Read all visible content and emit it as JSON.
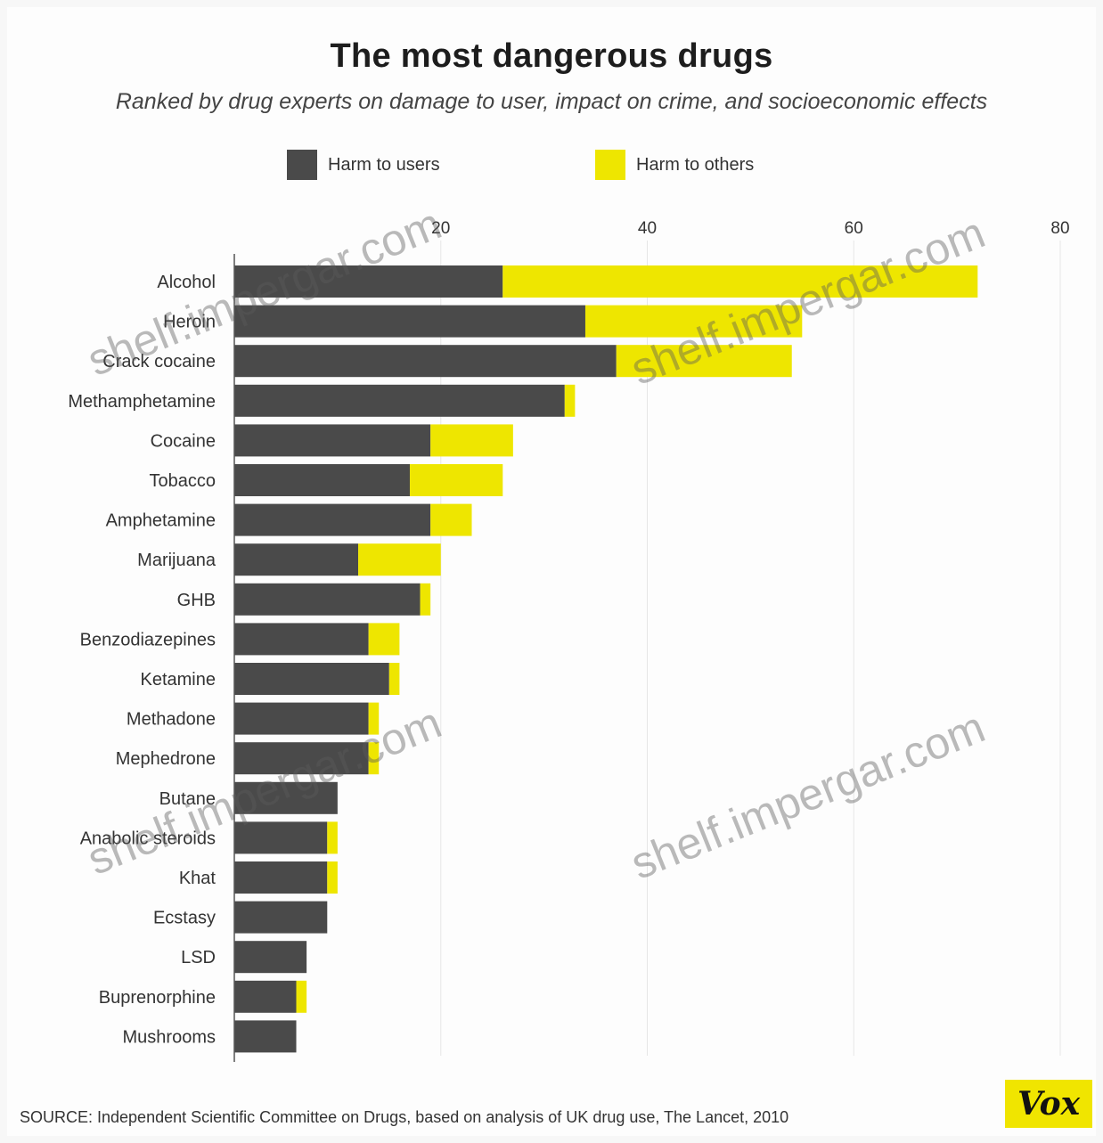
{
  "chart_data": {
    "type": "bar",
    "orientation": "horizontal",
    "stacked": true,
    "title": "The most dangerous drugs",
    "subtitle": "Ranked by drug experts on damage to user, impact on crime, and socioeconomic effects",
    "categories": [
      "Alcohol",
      "Heroin",
      "Crack cocaine",
      "Methamphetamine",
      "Cocaine",
      "Tobacco",
      "Amphetamine",
      "Marijuana",
      "GHB",
      "Benzodiazepines",
      "Ketamine",
      "Methadone",
      "Mephedrone",
      "Butane",
      "Anabolic steroids",
      "Khat",
      "Ecstasy",
      "LSD",
      "Buprenorphine",
      "Mushrooms"
    ],
    "series": [
      {
        "name": "Harm to users",
        "color": "#4a4a4a",
        "values": [
          26,
          34,
          37,
          32,
          19,
          17,
          19,
          12,
          18,
          13,
          15,
          13,
          13,
          10,
          9,
          9,
          9,
          7,
          6,
          6
        ]
      },
      {
        "name": "Harm to others",
        "color": "#eee600",
        "values": [
          46,
          21,
          17,
          1,
          8,
          9,
          4,
          8,
          1,
          3,
          1,
          1,
          1,
          0,
          1,
          1,
          0,
          0,
          1,
          0
        ]
      }
    ],
    "xaxis": {
      "ticks": [
        20,
        40,
        60,
        80
      ],
      "range": [
        0,
        80
      ]
    },
    "legend_position": "top"
  },
  "legend": [
    {
      "label": "Harm to users",
      "color": "#4a4a4a"
    },
    {
      "label": "Harm to others",
      "color": "#eee600"
    }
  ],
  "source": "SOURCE: Independent Scientific Committee on Drugs, based on analysis of UK drug use, The Lancet, 2010",
  "logo": "Vox",
  "watermark": "shelf.impergar.com"
}
